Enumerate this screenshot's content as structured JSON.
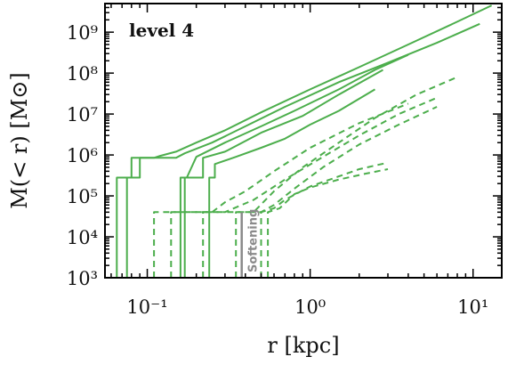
{
  "chart_data": {
    "type": "line",
    "title": "",
    "panel_label": "level 4",
    "xlabel": "r [kpc]",
    "ylabel": "M(< r) [M⊙]",
    "xscale": "log",
    "yscale": "log",
    "xlim": [
      0.055,
      15
    ],
    "ylim": [
      1000,
      5000000000
    ],
    "x_ticks": [
      {
        "value": 0.1,
        "label": "10⁻¹"
      },
      {
        "value": 1,
        "label": "10⁰"
      },
      {
        "value": 10,
        "label": "10¹"
      }
    ],
    "y_ticks": [
      {
        "value": 1000,
        "label": "10³"
      },
      {
        "value": 10000,
        "label": "10⁴"
      },
      {
        "value": 100000,
        "label": "10⁵"
      },
      {
        "value": 1000000,
        "label": "10⁶"
      },
      {
        "value": 10000000,
        "label": "10⁷"
      },
      {
        "value": 100000000,
        "label": "10⁸"
      },
      {
        "value": 1000000000,
        "label": "10⁹"
      }
    ],
    "grid": false,
    "legend": "none",
    "color": "#4cae4c",
    "softening": {
      "x": 0.38,
      "label": "Softening",
      "color": "#8a8a8a"
    },
    "series": [
      {
        "style": "solid",
        "points": [
          [
            0.065,
            1000
          ],
          [
            0.065,
            280000
          ],
          [
            0.08,
            280000
          ],
          [
            0.08,
            850000
          ],
          [
            0.11,
            850000
          ],
          [
            0.12,
            950000
          ],
          [
            0.15,
            1200000
          ],
          [
            0.2,
            2000000
          ],
          [
            0.3,
            4000000
          ],
          [
            0.5,
            11000000
          ],
          [
            1,
            40000000
          ],
          [
            2,
            140000000
          ],
          [
            4,
            500000000
          ],
          [
            8,
            1800000000
          ],
          [
            13,
            4500000000
          ]
        ]
      },
      {
        "style": "solid",
        "points": [
          [
            0.075,
            1000
          ],
          [
            0.075,
            280000
          ],
          [
            0.09,
            280000
          ],
          [
            0.09,
            850000
          ],
          [
            0.15,
            850000
          ],
          [
            0.17,
            1100000
          ],
          [
            0.25,
            2000000
          ],
          [
            0.4,
            5000000
          ],
          [
            0.7,
            15000000
          ],
          [
            1.5,
            60000000
          ],
          [
            3,
            180000000
          ],
          [
            6,
            550000000
          ],
          [
            11,
            1600000000
          ]
        ]
      },
      {
        "style": "solid",
        "points": [
          [
            0.16,
            1000
          ],
          [
            0.16,
            280000
          ],
          [
            0.175,
            280000
          ],
          [
            0.2,
            900000
          ],
          [
            0.3,
            2000000
          ],
          [
            0.5,
            5000000
          ],
          [
            0.8,
            12000000
          ],
          [
            1.5,
            40000000
          ],
          [
            2.5,
            120000000
          ],
          [
            4,
            280000000
          ]
        ]
      },
      {
        "style": "solid",
        "points": [
          [
            0.17,
            1000
          ],
          [
            0.17,
            280000
          ],
          [
            0.22,
            280000
          ],
          [
            0.22,
            850000
          ],
          [
            0.3,
            1200000
          ],
          [
            0.5,
            3500000
          ],
          [
            0.9,
            9000000
          ],
          [
            1.5,
            30000000
          ],
          [
            2.8,
            120000000
          ]
        ]
      },
      {
        "style": "solid",
        "points": [
          [
            0.24,
            1000
          ],
          [
            0.24,
            280000
          ],
          [
            0.26,
            280000
          ],
          [
            0.26,
            600000
          ],
          [
            0.35,
            900000
          ],
          [
            0.5,
            1500000
          ],
          [
            0.7,
            2500000
          ],
          [
            1,
            5500000
          ],
          [
            1.5,
            12000000
          ],
          [
            2.5,
            40000000
          ]
        ]
      },
      {
        "style": "dashed",
        "points": [
          [
            0.11,
            1000
          ],
          [
            0.11,
            40000
          ],
          [
            0.5,
            40000
          ],
          [
            0.6,
            60000
          ],
          [
            0.8,
            150000
          ],
          [
            1.2,
            500000
          ],
          [
            2,
            1800000
          ],
          [
            3.5,
            5500000
          ],
          [
            6,
            15000000
          ]
        ]
      },
      {
        "style": "dashed",
        "points": [
          [
            0.14,
            1000
          ],
          [
            0.14,
            40000
          ],
          [
            0.3,
            40000
          ],
          [
            0.45,
            80000
          ],
          [
            0.7,
            250000
          ],
          [
            1.2,
            900000
          ],
          [
            2,
            3000000
          ],
          [
            3.5,
            10000000
          ],
          [
            6,
            25000000
          ]
        ]
      },
      {
        "style": "dashed",
        "points": [
          [
            0.22,
            1000
          ],
          [
            0.22,
            40000
          ],
          [
            0.25,
            40000
          ],
          [
            0.3,
            70000
          ],
          [
            0.4,
            130000
          ],
          [
            0.6,
            400000
          ],
          [
            1,
            1500000
          ],
          [
            2,
            6000000
          ],
          [
            4,
            18000000
          ]
        ]
      },
      {
        "style": "dashed",
        "points": [
          [
            0.35,
            1000
          ],
          [
            0.35,
            40000
          ],
          [
            0.45,
            40000
          ],
          [
            0.6,
            130000
          ],
          [
            0.9,
            500000
          ],
          [
            1.5,
            2000000
          ],
          [
            2.5,
            8000000
          ],
          [
            4.5,
            30000000
          ],
          [
            8,
            80000000
          ]
        ]
      },
      {
        "style": "dashed",
        "points": [
          [
            0.5,
            1000
          ],
          [
            0.5,
            40000
          ],
          [
            0.6,
            50000
          ],
          [
            0.7,
            80000
          ],
          [
            1,
            170000
          ],
          [
            1.5,
            300000
          ],
          [
            2,
            450000
          ],
          [
            3,
            650000
          ]
        ]
      },
      {
        "style": "dashed",
        "points": [
          [
            0.55,
            1000
          ],
          [
            0.55,
            40000
          ],
          [
            0.65,
            50000
          ],
          [
            0.8,
            110000
          ],
          [
            1,
            160000
          ],
          [
            1.5,
            250000
          ],
          [
            2.2,
            350000
          ],
          [
            3,
            450000
          ]
        ]
      }
    ]
  }
}
